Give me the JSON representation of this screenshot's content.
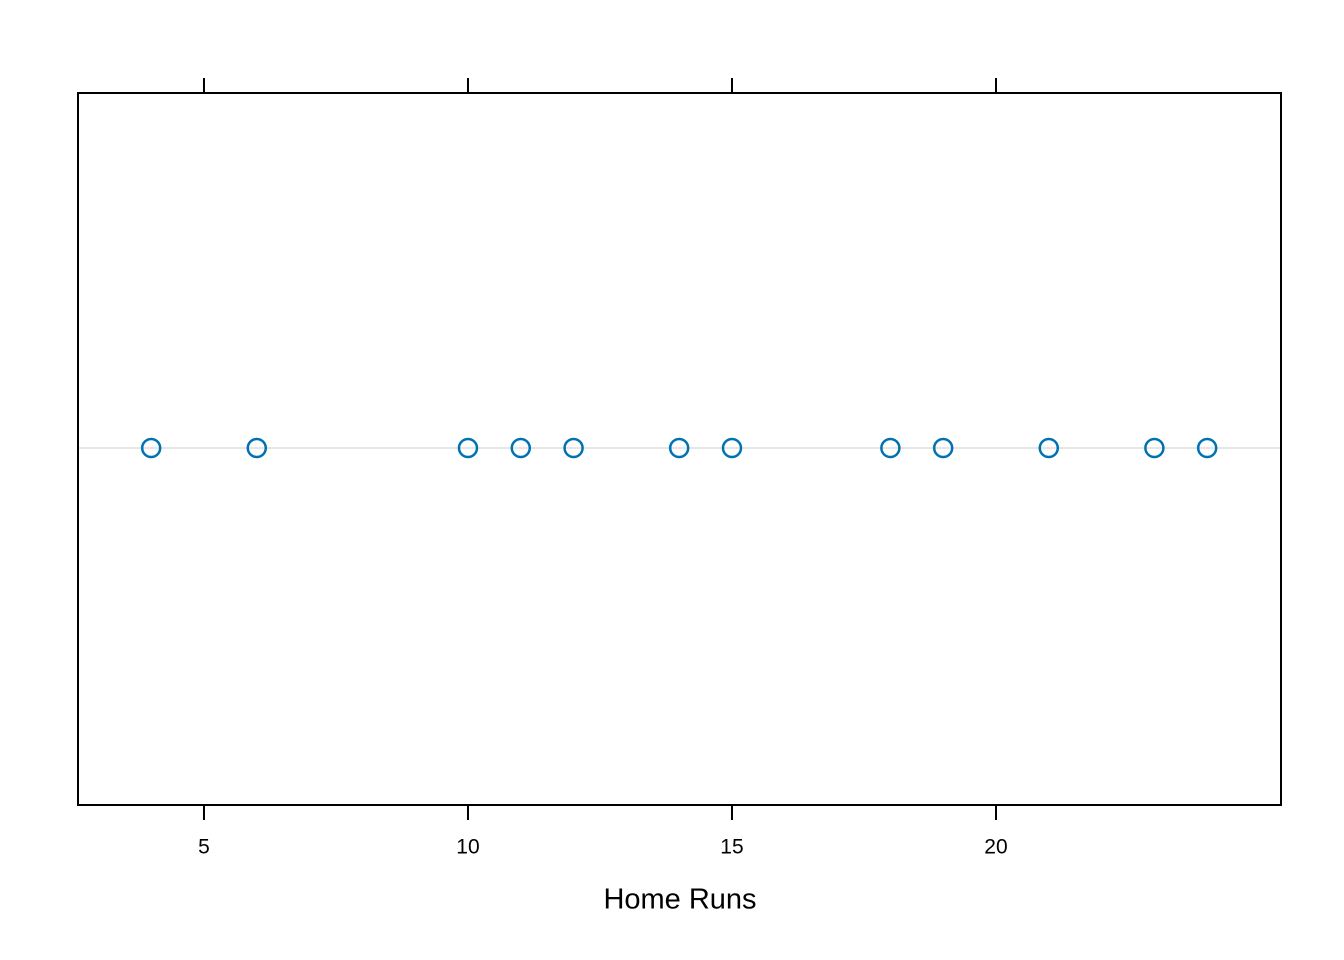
{
  "chart_data": {
    "type": "strip",
    "xlabel": "Home Runs",
    "series": [
      {
        "color": "#0072B2",
        "values": [
          4,
          6,
          10,
          11,
          12,
          14,
          15,
          18,
          19,
          21,
          23,
          24
        ]
      }
    ],
    "xlim": [
      2.614,
      25.398
    ],
    "xticks": [
      5,
      10,
      15,
      20
    ],
    "grid": true
  }
}
